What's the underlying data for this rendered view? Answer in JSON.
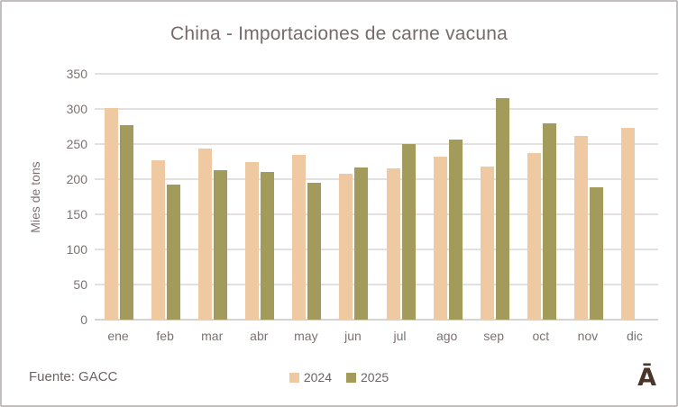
{
  "title": "China - Importaciones de carne vacuna",
  "source": "Fuente: GACC",
  "logo_glyph": "Ā",
  "chart_data": {
    "type": "bar",
    "title": "China - Importaciones de carne vacuna",
    "ylabel": "Mies de tons",
    "xlabel": "",
    "ylim": [
      0,
      350
    ],
    "yticks": [
      0,
      50,
      100,
      150,
      200,
      250,
      300,
      350
    ],
    "grid": true,
    "legend_position": "bottom-center",
    "categories": [
      "ene",
      "feb",
      "mar",
      "abr",
      "may",
      "jun",
      "jul",
      "ago",
      "sep",
      "oct",
      "nov",
      "dic"
    ],
    "series": [
      {
        "name": "2024",
        "color": "#efc9a2",
        "values": [
          301,
          227,
          243,
          224,
          234,
          208,
          215,
          232,
          218,
          237,
          261,
          273
        ]
      },
      {
        "name": "2025",
        "color": "#a29b5b",
        "values": [
          277,
          192,
          213,
          210,
          195,
          217,
          250,
          256,
          315,
          280,
          188,
          null
        ]
      }
    ]
  }
}
